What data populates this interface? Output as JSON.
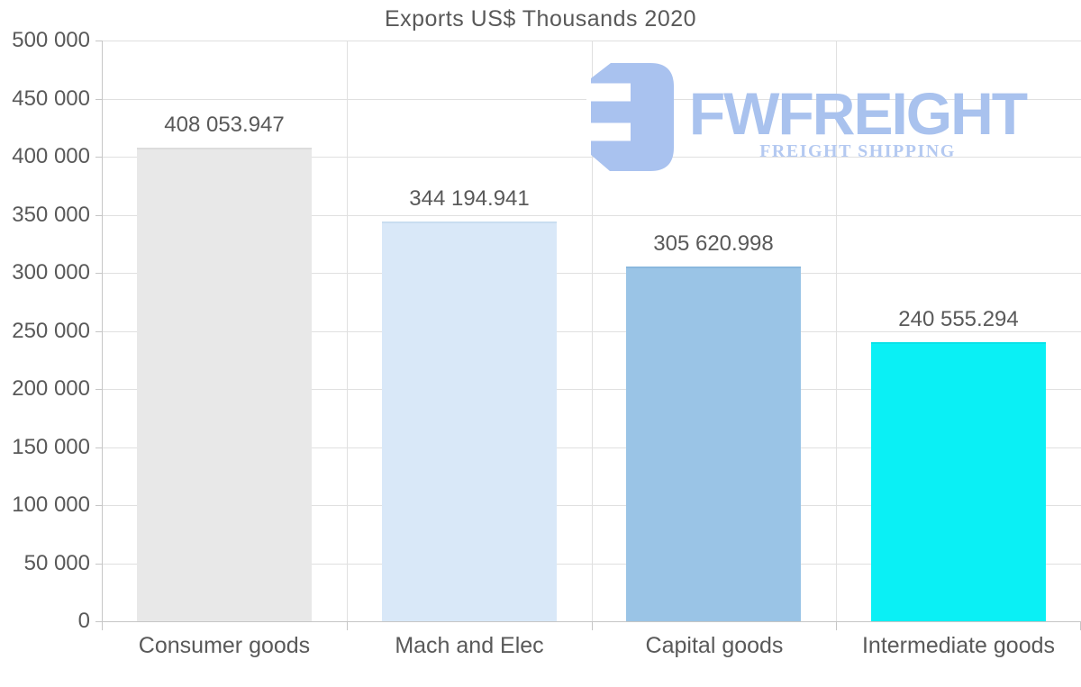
{
  "title": "Exports US$ Thousands 2020",
  "logo": {
    "name": "FWFREIGHT",
    "tagline": "FREIGHT SHIPPING",
    "name_color": "#a9c2ee",
    "tagline_color": "#b4c9f1",
    "icon_color": "#a9c2ef"
  },
  "chart_data": {
    "type": "bar",
    "title": "Exports US$ Thousands 2020",
    "categories": [
      "Consumer goods",
      "Mach and Elec",
      "Capital goods",
      "Intermediate goods"
    ],
    "values": [
      408053.947,
      344194.941,
      305620.998,
      240555.294
    ],
    "value_labels": [
      "408 053.947",
      "344 194.941",
      "305 620.998",
      "240 555.294"
    ],
    "bar_colors": [
      "#e8e8e8",
      "#d9e8f8",
      "#9ac4e6",
      "#0af0f5"
    ],
    "bar_border_colors": [
      "#dcdcdc",
      "#c9ddf0",
      "#8ab7dd",
      "#09e2e8"
    ],
    "xlabel": "",
    "ylabel": "",
    "ylim": [
      0,
      500000
    ],
    "ytick_step": 50000,
    "ytick_labels": [
      "0",
      "50 000",
      "100 000",
      "150 000",
      "200 000",
      "250 000",
      "300 000",
      "350 000",
      "400 000",
      "450 000",
      "500 000"
    ],
    "grid": true,
    "legend": false,
    "grid_color": "#e0e0e0",
    "axis_color": "#c6c6c6",
    "text_color": "#595959"
  }
}
